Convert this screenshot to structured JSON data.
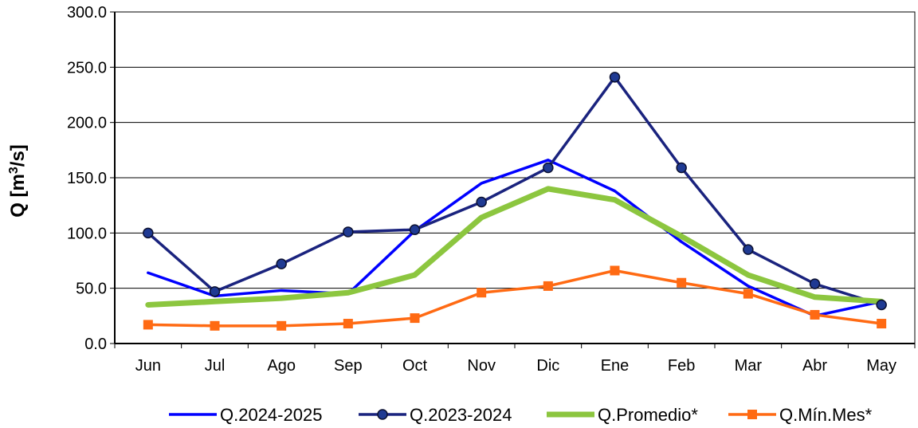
{
  "chart_data": {
    "type": "line",
    "title": "",
    "ylabel_main": "Q [m",
    "ylabel_sup": "3",
    "ylabel_tail": "/s]",
    "categories": [
      "Jun",
      "Jul",
      "Ago",
      "Sep",
      "Oct",
      "Nov",
      "Dic",
      "Ene",
      "Feb",
      "Mar",
      "Abr",
      "May"
    ],
    "ylim": [
      0,
      300
    ],
    "yticks": [
      "0.0",
      "50.0",
      "100.0",
      "150.0",
      "200.0",
      "250.0",
      "300.0"
    ],
    "grid": "horizontal",
    "legend_position": "bottom",
    "series": [
      {
        "name": "Q.2024-2025",
        "color": "#0000ff",
        "marker": "none",
        "values": [
          64,
          43,
          48,
          45,
          102,
          145,
          166,
          138,
          92,
          52,
          25,
          38
        ]
      },
      {
        "name": "Q.2023-2024",
        "color": "#1a237e",
        "marker": "circle",
        "values": [
          100,
          47,
          72,
          101,
          103,
          128,
          159,
          241,
          159,
          85,
          54,
          35
        ]
      },
      {
        "name": "Q.Promedio*",
        "color": "#8cc63f",
        "marker": "none",
        "values": [
          35,
          38,
          41,
          46,
          62,
          114,
          140,
          130,
          97,
          62,
          42,
          38
        ]
      },
      {
        "name": "Q.Mín.Mes*",
        "color": "#ff6a13",
        "marker": "square",
        "values": [
          17,
          16,
          16,
          18,
          23,
          46,
          52,
          66,
          55,
          45,
          26,
          18
        ]
      }
    ]
  }
}
